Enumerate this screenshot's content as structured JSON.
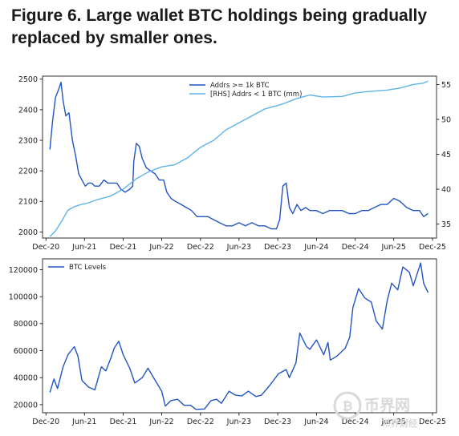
{
  "figure": {
    "title": "Figure 6. Large wallet BTC holdings being gradually replaced by smaller ones."
  },
  "colors": {
    "dark_blue": "#2255c4",
    "light_blue": "#5fb3e8",
    "watermark": "#d9d9d9"
  },
  "watermark": {
    "text_main": "币界网",
    "text_sub": "币界财经"
  },
  "chart_data": [
    {
      "type": "line",
      "x_tick_labels": [
        "Dec-20",
        "Jun-21",
        "Dec-21",
        "Jun-22",
        "Dec-22",
        "Jun-23",
        "Dec-23",
        "Jun-24",
        "Dec-24",
        "Jun-25",
        "Dec-25"
      ],
      "y_tick_labels": [
        "2000",
        "2100",
        "2200",
        "2300",
        "2400",
        "2500"
      ],
      "y2_tick_labels": [
        "35",
        "40",
        "45",
        "50",
        "55"
      ],
      "ylim": [
        1980,
        2510
      ],
      "y2lim": [
        33,
        56.2
      ],
      "legend_position": "top-center",
      "series": [
        {
          "name": "Addrs >= 1k BTC",
          "axis": "left",
          "color": "#2255c4",
          "x": [
            "2020-12-20",
            "2021-01-01",
            "2021-01-15",
            "2021-02-01",
            "2021-02-10",
            "2021-02-20",
            "2021-03-05",
            "2021-03-20",
            "2021-04-05",
            "2021-04-20",
            "2021-05-05",
            "2021-05-20",
            "2021-06-05",
            "2021-06-20",
            "2021-07-05",
            "2021-07-20",
            "2021-08-10",
            "2021-09-01",
            "2021-09-20",
            "2021-10-10",
            "2021-11-01",
            "2021-11-20",
            "2021-12-10",
            "2022-01-01",
            "2022-01-15",
            "2022-01-20",
            "2022-02-01",
            "2022-02-15",
            "2022-03-01",
            "2022-03-20",
            "2022-04-10",
            "2022-05-01",
            "2022-05-20",
            "2022-06-10",
            "2022-06-25",
            "2022-07-15",
            "2022-08-05",
            "2022-09-01",
            "2022-09-25",
            "2022-10-20",
            "2022-11-15",
            "2022-12-10",
            "2023-01-05",
            "2023-02-01",
            "2023-03-01",
            "2023-04-01",
            "2023-05-01",
            "2023-06-01",
            "2023-07-01",
            "2023-08-01",
            "2023-09-01",
            "2023-10-01",
            "2023-11-01",
            "2023-11-25",
            "2023-12-10",
            "2023-12-25",
            "2024-01-10",
            "2024-01-25",
            "2024-02-10",
            "2024-03-01",
            "2024-03-20",
            "2024-04-10",
            "2024-05-01",
            "2024-06-01",
            "2024-07-01",
            "2024-08-01",
            "2024-09-01",
            "2024-10-01",
            "2024-11-01",
            "2024-12-01",
            "2025-01-01",
            "2025-02-01",
            "2025-03-01",
            "2025-04-01",
            "2025-05-01",
            "2025-06-01",
            "2025-07-01",
            "2025-08-01",
            "2025-09-01",
            "2025-10-01",
            "2025-10-20",
            "2025-11-10"
          ],
          "values": [
            2270,
            2360,
            2440,
            2470,
            2490,
            2430,
            2380,
            2390,
            2300,
            2250,
            2190,
            2170,
            2150,
            2160,
            2160,
            2150,
            2150,
            2170,
            2160,
            2160,
            2160,
            2140,
            2130,
            2140,
            2150,
            2230,
            2290,
            2280,
            2240,
            2210,
            2200,
            2190,
            2170,
            2170,
            2130,
            2110,
            2100,
            2090,
            2080,
            2070,
            2050,
            2050,
            2050,
            2040,
            2030,
            2020,
            2020,
            2030,
            2020,
            2030,
            2020,
            2020,
            2010,
            2010,
            2040,
            2150,
            2160,
            2080,
            2060,
            2090,
            2070,
            2080,
            2070,
            2070,
            2060,
            2070,
            2070,
            2070,
            2060,
            2060,
            2070,
            2070,
            2080,
            2090,
            2090,
            2110,
            2100,
            2080,
            2070,
            2070,
            2050,
            2060
          ]
        },
        {
          "name": "[RHS] Addrs < 1 BTC (mm)",
          "axis": "right",
          "color": "#5fb3e8",
          "x": [
            "2020-12-20",
            "2021-01-15",
            "2021-02-15",
            "2021-03-15",
            "2021-04-15",
            "2021-05-15",
            "2021-06-15",
            "2021-08-01",
            "2021-10-01",
            "2021-12-01",
            "2022-02-01",
            "2022-04-01",
            "2022-06-01",
            "2022-08-01",
            "2022-10-01",
            "2022-12-01",
            "2023-02-01",
            "2023-04-01",
            "2023-06-01",
            "2023-08-01",
            "2023-10-01",
            "2023-12-01",
            "2024-01-01",
            "2024-03-01",
            "2024-05-01",
            "2024-07-01",
            "2024-10-01",
            "2024-12-01",
            "2025-02-01",
            "2025-05-01",
            "2025-07-01",
            "2025-09-01",
            "2025-10-20",
            "2025-11-10"
          ],
          "values": [
            33.2,
            34.0,
            35.5,
            37.0,
            37.5,
            37.8,
            38.0,
            38.5,
            39.0,
            40.0,
            41.5,
            42.5,
            43.2,
            43.5,
            44.5,
            46.0,
            47.0,
            48.5,
            49.5,
            50.5,
            51.5,
            52.0,
            52.3,
            53.0,
            53.5,
            53.2,
            53.3,
            53.8,
            54.0,
            54.2,
            54.5,
            55.0,
            55.2,
            55.5
          ]
        }
      ]
    },
    {
      "type": "line",
      "x_tick_labels": [
        "Dec-20",
        "Jun-21",
        "Dec-21",
        "Jun-22",
        "Dec-22",
        "Jun-23",
        "Dec-23",
        "Jun-24",
        "Dec-24",
        "Jun-25",
        "Dec-25"
      ],
      "y_tick_labels": [
        "20000",
        "40000",
        "60000",
        "80000",
        "100000",
        "120000"
      ],
      "ylim": [
        14000,
        128000
      ],
      "legend_position": "top-left",
      "series": [
        {
          "name": "BTC Levels",
          "axis": "left",
          "color": "#2255c4",
          "x": [
            "2020-12-20",
            "2021-01-08",
            "2021-01-25",
            "2021-02-20",
            "2021-03-15",
            "2021-04-14",
            "2021-05-01",
            "2021-05-20",
            "2021-06-20",
            "2021-07-20",
            "2021-08-20",
            "2021-09-10",
            "2021-10-05",
            "2021-10-20",
            "2021-11-10",
            "2021-12-01",
            "2022-01-01",
            "2022-01-25",
            "2022-03-01",
            "2022-03-28",
            "2022-05-01",
            "2022-06-01",
            "2022-06-18",
            "2022-07-15",
            "2022-08-15",
            "2022-09-15",
            "2022-10-15",
            "2022-11-10",
            "2022-12-20",
            "2023-01-20",
            "2023-02-15",
            "2023-03-10",
            "2023-04-15",
            "2023-05-15",
            "2023-06-15",
            "2023-07-15",
            "2023-08-20",
            "2023-09-15",
            "2023-10-25",
            "2023-12-05",
            "2024-01-10",
            "2024-01-25",
            "2024-02-25",
            "2024-03-14",
            "2024-04-15",
            "2024-05-01",
            "2024-06-01",
            "2024-07-05",
            "2024-07-25",
            "2024-08-05",
            "2024-09-06",
            "2024-10-15",
            "2024-11-05",
            "2024-11-20",
            "2024-12-17",
            "2025-01-15",
            "2025-02-15",
            "2025-03-10",
            "2025-04-08",
            "2025-05-01",
            "2025-05-22",
            "2025-06-20",
            "2025-07-14",
            "2025-08-14",
            "2025-09-01",
            "2025-10-06",
            "2025-10-20",
            "2025-11-10"
          ],
          "values": [
            29000,
            39000,
            32000,
            48000,
            57000,
            63000,
            56000,
            38000,
            33000,
            31000,
            48000,
            45000,
            55000,
            62000,
            67000,
            57000,
            47000,
            36000,
            40000,
            47000,
            38000,
            30000,
            19000,
            23000,
            24000,
            19500,
            19500,
            16500,
            16800,
            23000,
            24000,
            21000,
            30000,
            27000,
            26500,
            30000,
            26000,
            27000,
            34500,
            43000,
            46000,
            40000,
            51000,
            73000,
            63000,
            61000,
            68000,
            57000,
            66000,
            53000,
            56000,
            62000,
            70000,
            92000,
            106000,
            99000,
            96000,
            82000,
            76000,
            97000,
            110000,
            105000,
            122000,
            118000,
            108000,
            125000,
            110000,
            103000
          ]
        }
      ]
    }
  ]
}
